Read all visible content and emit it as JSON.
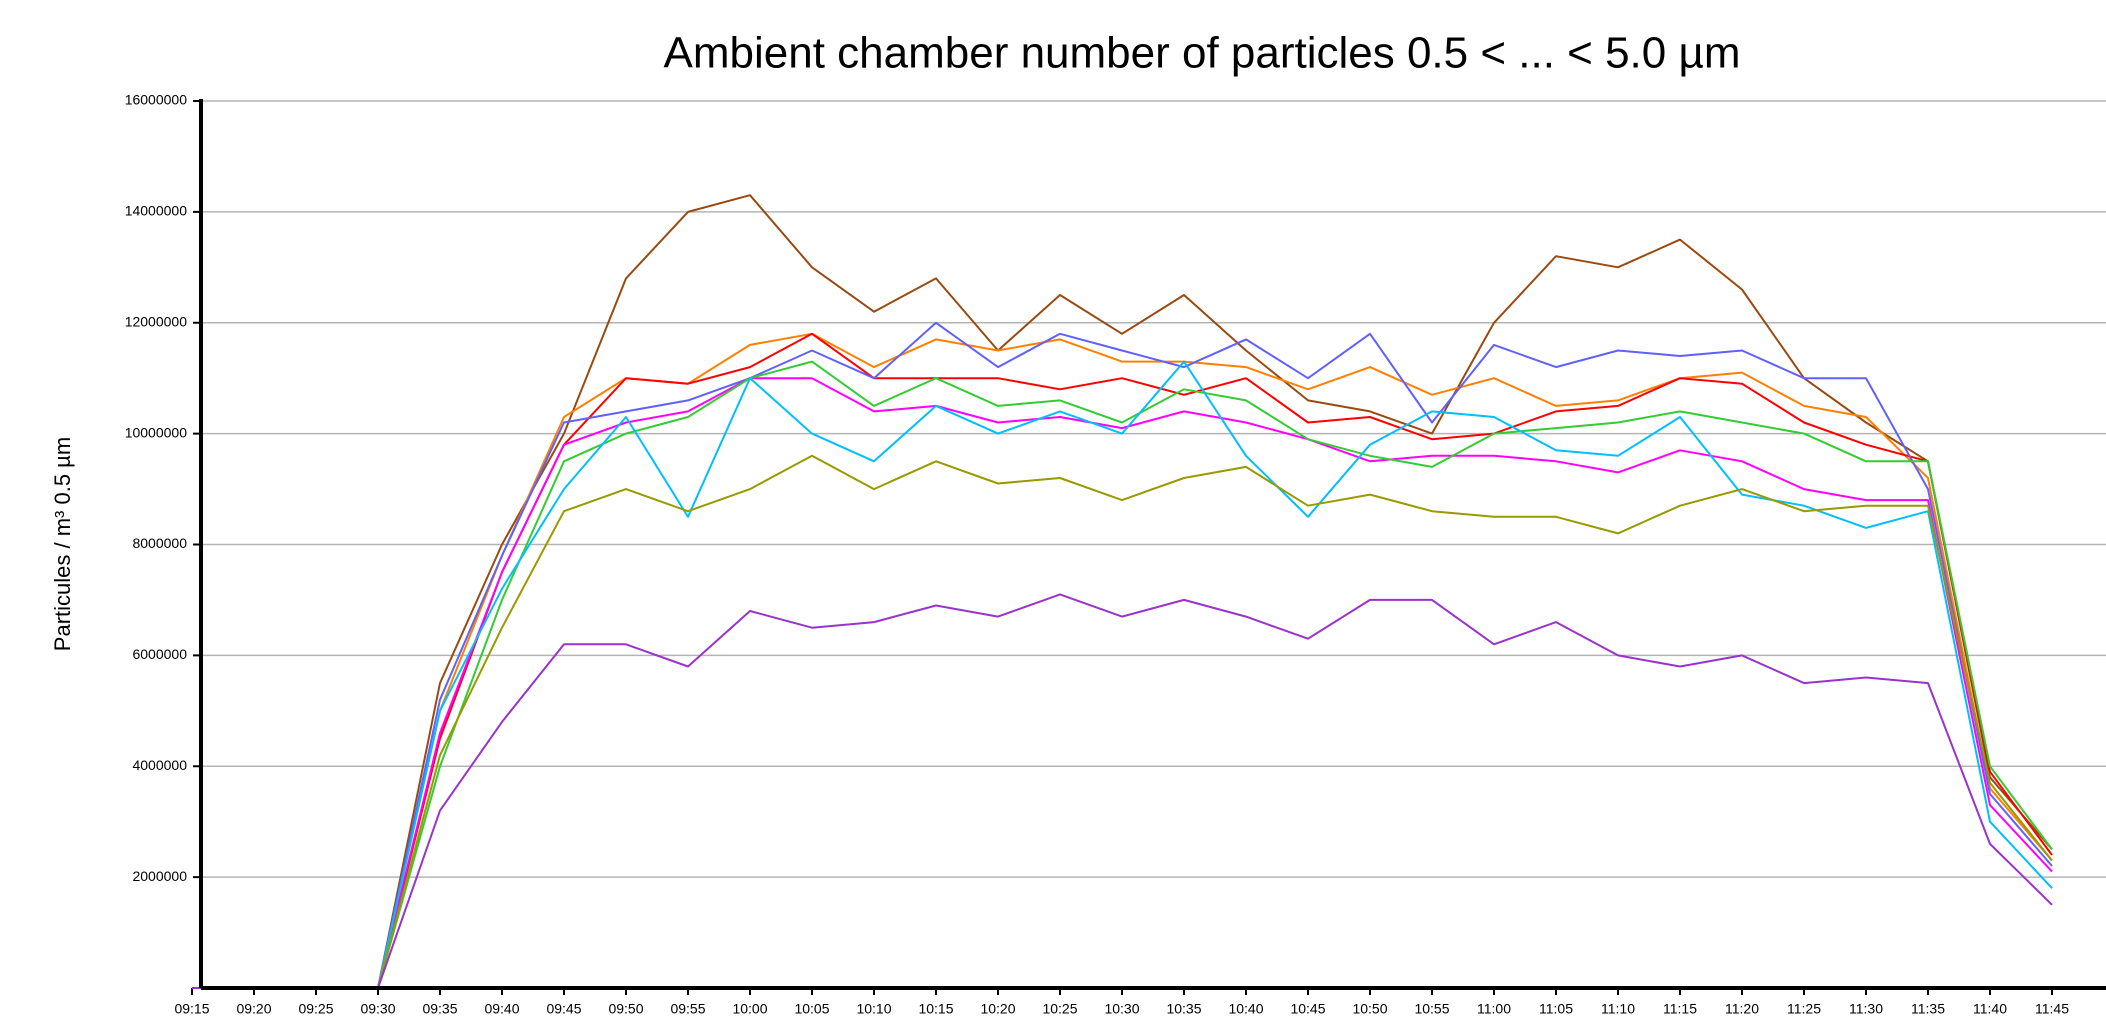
{
  "chart_data": {
    "type": "line",
    "title": "Ambient chamber number of particles 0.5 < ... < 5.0 µm",
    "y_label": "Particules / m³ 0.5 µm",
    "x": [
      "09:15",
      "09:20",
      "09:25",
      "09:30",
      "09:35",
      "09:40",
      "09:45",
      "09:50",
      "09:55",
      "10:00",
      "10:05",
      "10:10",
      "10:15",
      "10:20",
      "10:25",
      "10:30",
      "10:35",
      "10:40",
      "10:45",
      "10:50",
      "10:55",
      "11:00",
      "11:05",
      "11:10",
      "11:15",
      "11:20",
      "11:25",
      "11:30",
      "11:35",
      "11:40",
      "11:45"
    ],
    "ylim": [
      0,
      16000000
    ],
    "yticks": [
      2000000,
      4000000,
      6000000,
      8000000,
      10000000,
      12000000,
      14000000,
      16000000
    ],
    "grid": true,
    "series": [
      {
        "color": "#9a4a10",
        "values": [
          0,
          0,
          0,
          0,
          5500000,
          8000000,
          10000000,
          12800000,
          14000000,
          14300000,
          13000000,
          12200000,
          12800000,
          11500000,
          12500000,
          11800000,
          12500000,
          11500000,
          10600000,
          10400000,
          10000000,
          12000000,
          13200000,
          13000000,
          13500000,
          12600000,
          11000000,
          10200000,
          9500000,
          3800000,
          2500000
        ]
      },
      {
        "color": "#ff8000",
        "values": [
          0,
          0,
          0,
          0,
          5000000,
          7800000,
          10300000,
          11000000,
          10900000,
          11600000,
          11800000,
          11200000,
          11700000,
          11500000,
          11700000,
          11300000,
          11300000,
          11200000,
          10800000,
          11200000,
          10700000,
          11000000,
          10500000,
          10600000,
          11000000,
          11100000,
          10500000,
          10300000,
          9200000,
          3600000,
          2300000
        ]
      },
      {
        "color": "#ff0000",
        "values": [
          0,
          0,
          0,
          0,
          4500000,
          7500000,
          9800000,
          11000000,
          10900000,
          11200000,
          11800000,
          11000000,
          11000000,
          11000000,
          10800000,
          11000000,
          10700000,
          11000000,
          10200000,
          10300000,
          9900000,
          10000000,
          10400000,
          10500000,
          11000000,
          10900000,
          10200000,
          9800000,
          9500000,
          3900000,
          2400000
        ]
      },
      {
        "color": "#6060ff",
        "values": [
          0,
          0,
          0,
          0,
          5200000,
          7800000,
          10200000,
          10400000,
          10600000,
          11000000,
          11500000,
          11000000,
          12000000,
          11200000,
          11800000,
          11500000,
          11200000,
          11700000,
          11000000,
          11800000,
          10200000,
          11600000,
          11200000,
          11500000,
          11400000,
          11500000,
          11000000,
          11000000,
          9000000,
          3500000,
          2200000
        ]
      },
      {
        "color": "#ff00ff",
        "values": [
          0,
          0,
          0,
          0,
          4600000,
          7500000,
          9800000,
          10200000,
          10400000,
          11000000,
          11000000,
          10400000,
          10500000,
          10200000,
          10300000,
          10100000,
          10400000,
          10200000,
          9900000,
          9500000,
          9600000,
          9600000,
          9500000,
          9300000,
          9700000,
          9500000,
          9000000,
          8800000,
          8800000,
          3300000,
          2100000
        ]
      },
      {
        "color": "#33cc33",
        "values": [
          0,
          0,
          0,
          0,
          4000000,
          7000000,
          9500000,
          10000000,
          10300000,
          11000000,
          11300000,
          10500000,
          11000000,
          10500000,
          10600000,
          10200000,
          10800000,
          10600000,
          9900000,
          9600000,
          9400000,
          10000000,
          10100000,
          10200000,
          10400000,
          10200000,
          10000000,
          9500000,
          9500000,
          4000000,
          2500000
        ]
      },
      {
        "color": "#00bfff",
        "values": [
          0,
          0,
          0,
          0,
          5000000,
          7200000,
          9000000,
          10300000,
          8500000,
          11000000,
          10000000,
          9500000,
          10500000,
          10000000,
          10400000,
          10000000,
          11300000,
          9600000,
          8500000,
          9800000,
          10400000,
          10300000,
          9700000,
          9600000,
          10300000,
          8900000,
          8700000,
          8300000,
          8600000,
          3000000,
          1800000
        ]
      },
      {
        "color": "#999900",
        "values": [
          0,
          0,
          0,
          0,
          4200000,
          6500000,
          8600000,
          9000000,
          8600000,
          9000000,
          9600000,
          9000000,
          9500000,
          9100000,
          9200000,
          8800000,
          9200000,
          9400000,
          8700000,
          8900000,
          8600000,
          8500000,
          8500000,
          8200000,
          8700000,
          9000000,
          8600000,
          8700000,
          8700000,
          3700000,
          2300000
        ]
      },
      {
        "color": "#9933cc",
        "values": [
          0,
          0,
          0,
          0,
          3200000,
          4800000,
          6200000,
          6200000,
          5800000,
          6800000,
          6500000,
          6600000,
          6900000,
          6700000,
          7100000,
          6700000,
          7000000,
          6700000,
          6300000,
          7000000,
          7000000,
          6200000,
          6600000,
          6000000,
          5800000,
          6000000,
          5500000,
          5600000,
          5500000,
          2600000,
          1500000
        ]
      }
    ]
  }
}
